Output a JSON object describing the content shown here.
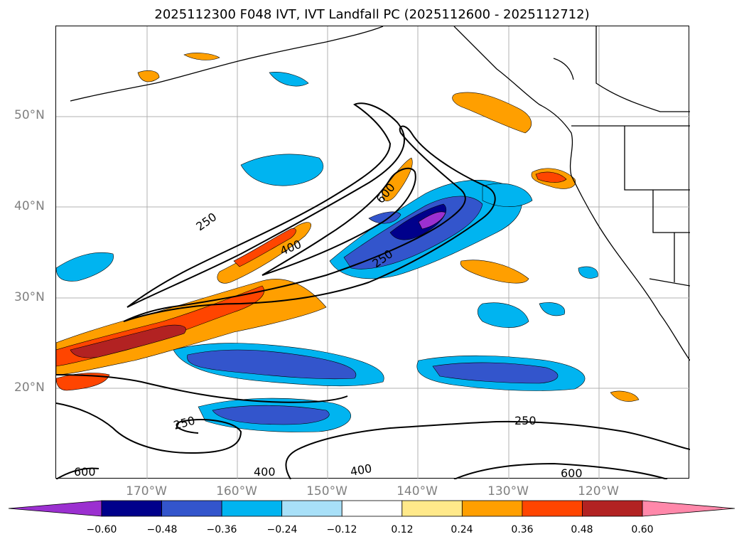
{
  "title": "2025112300 F048 IVT, IVT Landfall PC (2025112600 - 2025112712)",
  "lat_labels": [
    "50°N",
    "40°N",
    "30°N",
    "20°N"
  ],
  "lon_labels": [
    "170°W",
    "160°W",
    "150°W",
    "140°W",
    "130°W",
    "120°W"
  ],
  "contour_labels": [
    "250",
    "400",
    "600",
    "250",
    "250",
    "600",
    "400",
    "400",
    "250",
    "600"
  ],
  "colorbar": {
    "ticks": [
      "−0.60",
      "−0.48",
      "−0.36",
      "−0.24",
      "−0.12",
      "0.12",
      "0.24",
      "0.36",
      "0.48",
      "0.60"
    ],
    "colors": [
      "#9b30d0",
      "#00008b",
      "#3355cc",
      "#00b4f0",
      "#a8e0f8",
      "#ffffff",
      "#ffe98a",
      "#ff9f00",
      "#ff4500",
      "#b22222",
      "#ff88aa"
    ]
  }
}
